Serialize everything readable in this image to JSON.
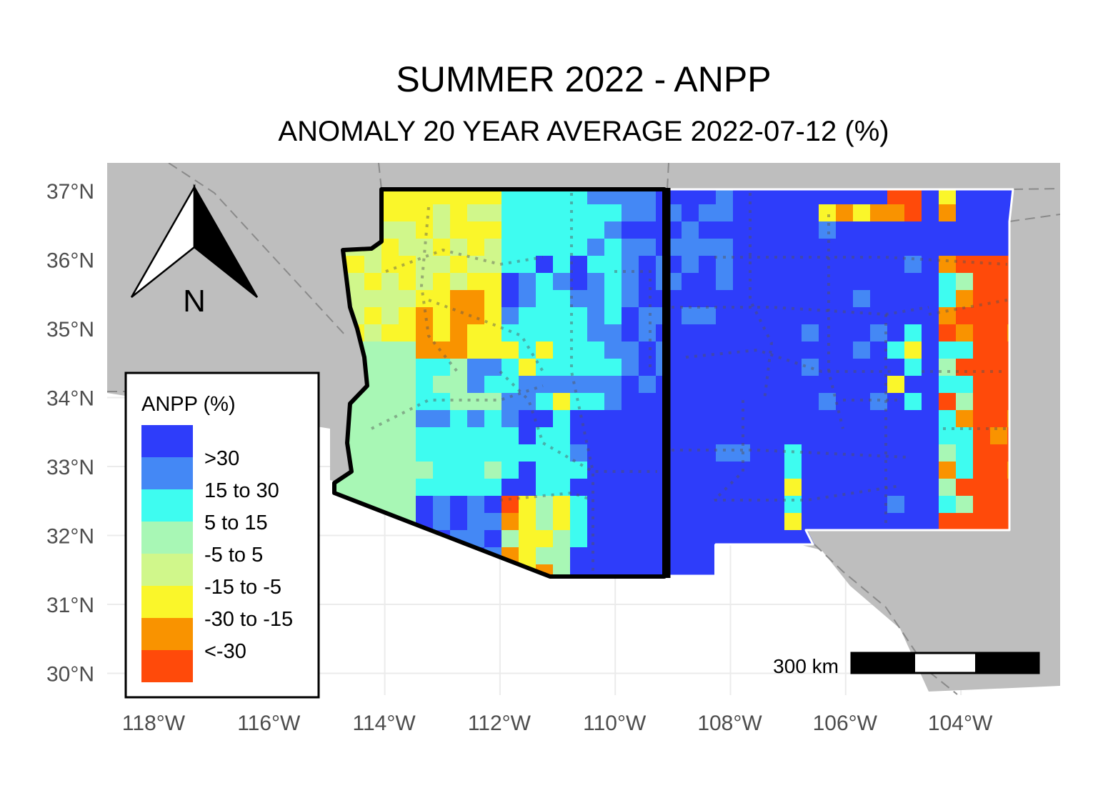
{
  "title": "SUMMER 2022 - ANPP",
  "subtitle": "ANOMALY 20 YEAR AVERAGE 2022-07-12 (%)",
  "axes": {
    "lat_ticks": [
      "37°N",
      "36°N",
      "35°N",
      "34°N",
      "33°N",
      "32°N",
      "31°N",
      "30°N"
    ],
    "lon_ticks": [
      "118°W",
      "116°W",
      "114°W",
      "112°W",
      "110°W",
      "108°W",
      "106°W",
      "104°W"
    ]
  },
  "north_arrow": {
    "label": "N"
  },
  "scale_bar": {
    "label": "300 km"
  },
  "legend": {
    "title": "ANPP (%)",
    "classes": [
      {
        "label": ">30",
        "color": "#2e3dfa"
      },
      {
        "label": "15 to 30",
        "color": "#4488f5"
      },
      {
        "label": "5 to 15",
        "color": "#3efcf0"
      },
      {
        "label": "-5 to 5",
        "color": "#a8f7b5"
      },
      {
        "label": "-15 to -5",
        "color": "#d0f78b"
      },
      {
        "label": "-30 to -15",
        "color": "#faf62a"
      },
      {
        "label": "<-30",
        "color": "#f99300"
      },
      {
        "label": "",
        "color": "#ff4a0a"
      }
    ]
  },
  "colors": {
    "background_land": "#bebebe",
    "grid": "#ebebeb",
    "state_outline": "#000000"
  }
}
